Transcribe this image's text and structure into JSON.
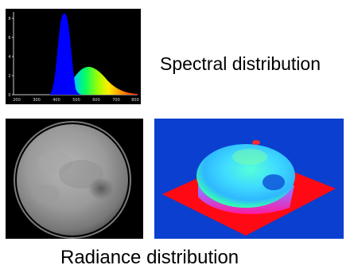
{
  "captions": {
    "spectral": "Spectral distribution",
    "radiance": "Radiance distribution"
  },
  "spectrum_axis": {
    "x_ticks": [
      "200",
      "300",
      "400",
      "500",
      "600",
      "700",
      "800"
    ],
    "y_ticks": [
      "0",
      "2",
      "4",
      "6",
      "8"
    ]
  },
  "colors": {
    "background": "#ffffff",
    "panel": "#000000",
    "surface_background": "#0a3fd0",
    "base_plate": "#ff0010",
    "blue_peak": "#0000ff"
  }
}
